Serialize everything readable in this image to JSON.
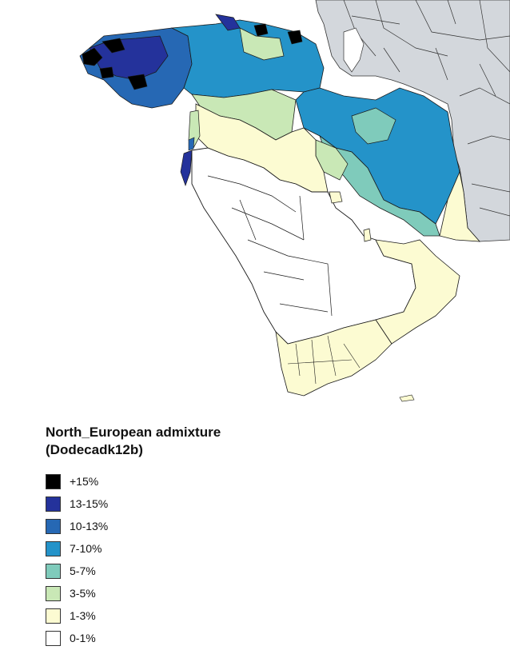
{
  "legend": {
    "title_line1": "North_European admixture",
    "title_line2": "(Dodecadk12b)",
    "items": [
      {
        "label": "+15%",
        "color": "#000000"
      },
      {
        "label": "13-15%",
        "color": "#24329b"
      },
      {
        "label": "10-13%",
        "color": "#2668b4"
      },
      {
        "label": "7-10%",
        "color": "#2493c9"
      },
      {
        "label": "5-7%",
        "color": "#7fcbbb"
      },
      {
        "label": "3-5%",
        "color": "#c9e8b6"
      },
      {
        "label": "1-3%",
        "color": "#fcfbd2"
      },
      {
        "label": "0-1%",
        "color": "#ffffff"
      }
    ]
  },
  "map": {
    "background_land_color": "#d3d7dc",
    "border_color": "#1a1a1a"
  }
}
